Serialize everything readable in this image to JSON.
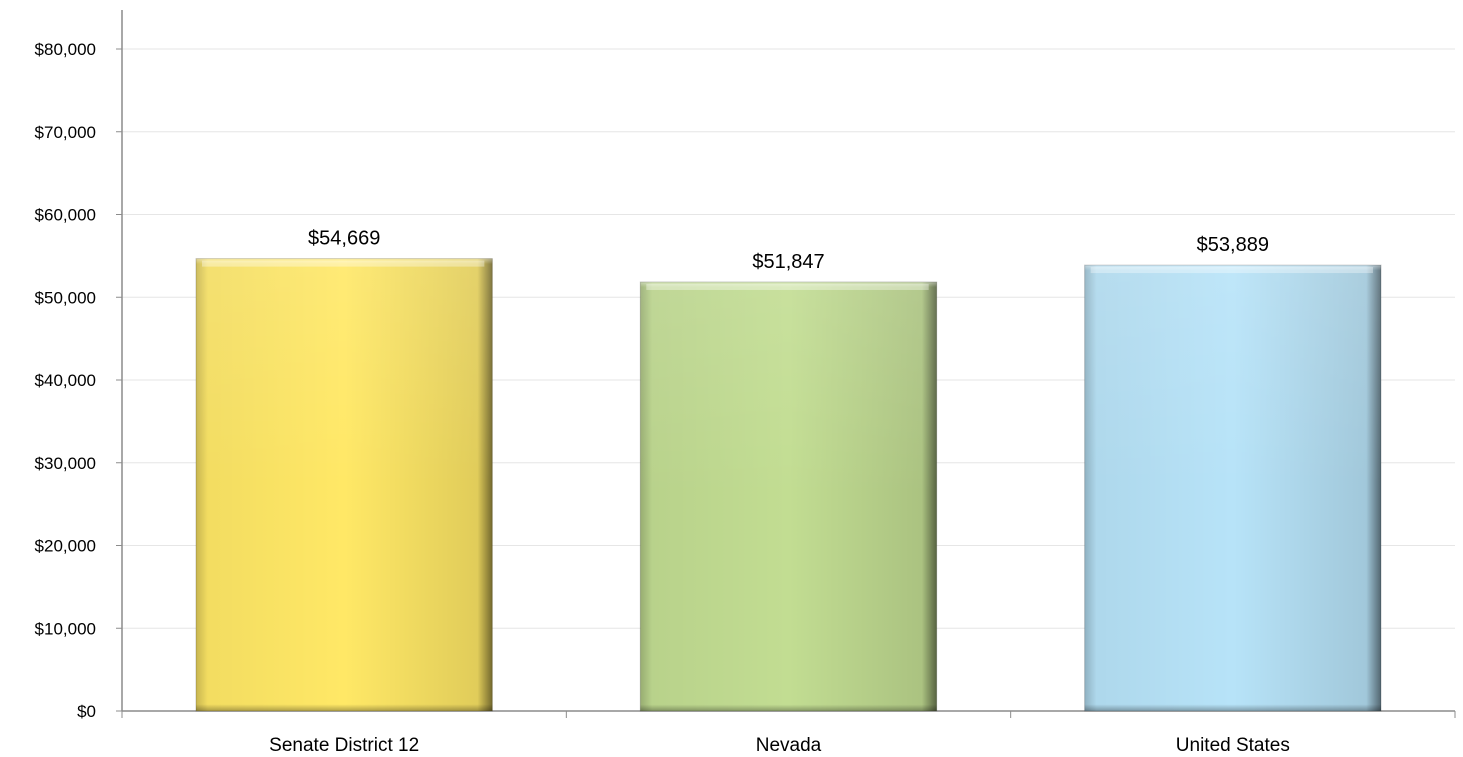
{
  "chart_data": {
    "type": "bar",
    "categories": [
      "Senate District 12",
      "Nevada",
      "United States"
    ],
    "values": [
      54669,
      51847,
      53889
    ],
    "data_labels": [
      "$54,669",
      "$51,847",
      "$53,889"
    ],
    "bar_colors": [
      "#FFE866",
      "#C2DD92",
      "#B7E3F8"
    ],
    "yticks": [
      0,
      10000,
      20000,
      30000,
      40000,
      50000,
      60000,
      70000,
      80000
    ],
    "ytick_labels": [
      "$0",
      "$10,000",
      "$20,000",
      "$30,000",
      "$40,000",
      "$50,000",
      "$60,000",
      "$70,000",
      "$80,000"
    ],
    "ylim": [
      0,
      80000
    ],
    "grid": true,
    "legend": "none"
  }
}
